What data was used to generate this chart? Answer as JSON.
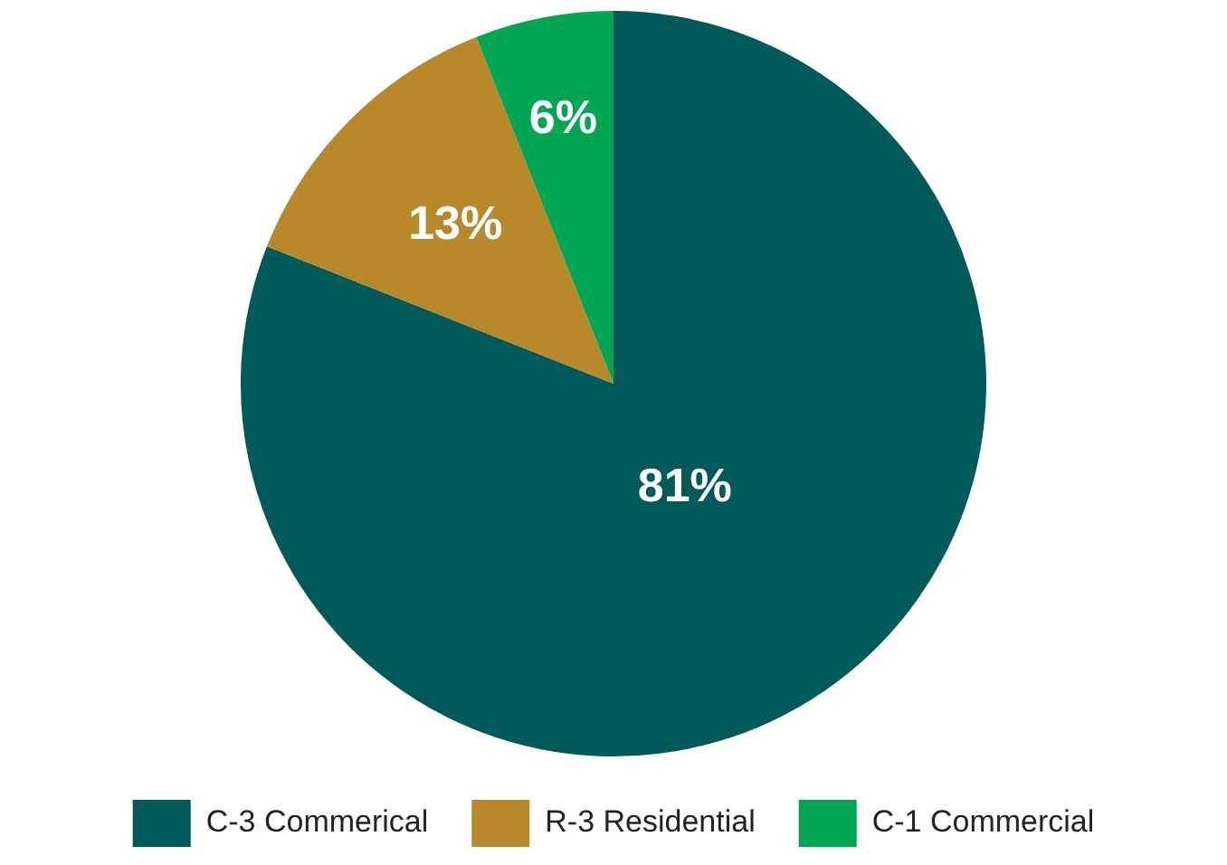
{
  "chart_data": {
    "type": "pie",
    "categories": [
      "C-3 Commerical",
      "R-3 Residential",
      "C-1 Commercial"
    ],
    "values": [
      81,
      13,
      6
    ],
    "colors": [
      "#02595a",
      "#b8892a",
      "#00a651"
    ],
    "value_labels": [
      "81%",
      "13%",
      "6%"
    ],
    "legend": "bottom"
  }
}
